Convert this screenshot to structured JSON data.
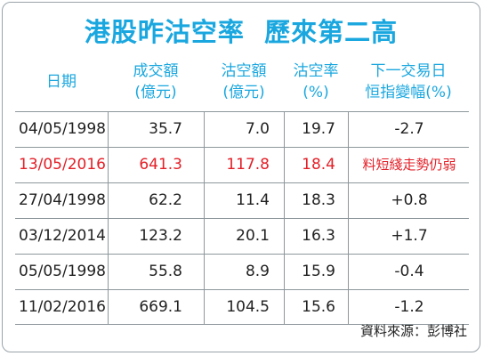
{
  "title": "港股昨沽空率  歷來第二高",
  "colors": {
    "accent": "#1aa7df",
    "highlight": "#e32028",
    "text": "#222222"
  },
  "chart_data": {
    "type": "table",
    "columns": [
      {
        "line1": "日期",
        "line2": ""
      },
      {
        "line1": "成交額",
        "line2": "(億元)"
      },
      {
        "line1": "沽空額",
        "line2": "(億元)"
      },
      {
        "line1": "沽空率",
        "line2": "(%)"
      },
      {
        "line1": "下一交易日",
        "line2": "恒指變幅(%)"
      }
    ],
    "rows": [
      {
        "date": "04/05/1998",
        "turnover": "35.7",
        "short": "7.0",
        "ratio": "19.7",
        "change": "-2.7",
        "highlight": false
      },
      {
        "date": "13/05/2016",
        "turnover": "641.3",
        "short": "117.8",
        "ratio": "18.4",
        "change": "料短綫走勢仍弱",
        "highlight": true
      },
      {
        "date": "27/04/1998",
        "turnover": "62.2",
        "short": "11.4",
        "ratio": "18.3",
        "change": "+0.8",
        "highlight": false
      },
      {
        "date": "03/12/2014",
        "turnover": "123.2",
        "short": "20.1",
        "ratio": "16.3",
        "change": "+1.7",
        "highlight": false
      },
      {
        "date": "05/05/1998",
        "turnover": "55.8",
        "short": "8.9",
        "ratio": "15.9",
        "change": "-0.4",
        "highlight": false
      },
      {
        "date": "11/02/2016",
        "turnover": "669.1",
        "short": "104.5",
        "ratio": "15.6",
        "change": "-1.2",
        "highlight": false
      }
    ]
  },
  "source": "資料來源：彭博社"
}
